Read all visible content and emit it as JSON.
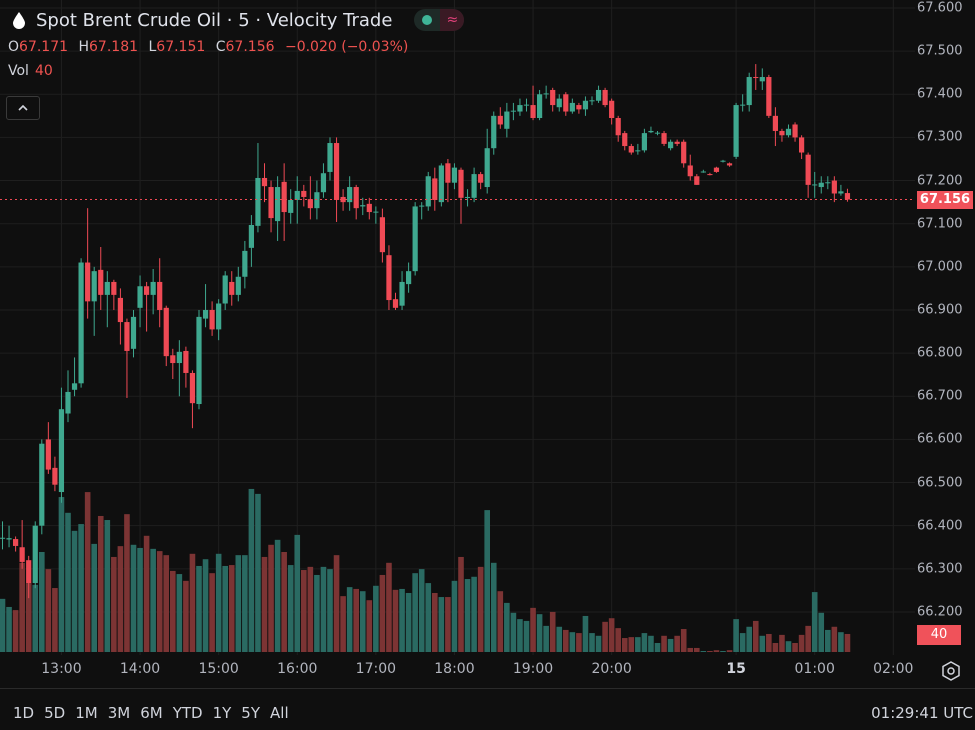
{
  "header": {
    "title": "Spot Brent Crude Oil · 5 · Velocity Trade",
    "symbol_icon": "droplet-icon",
    "status_dot_color": "#3fb598",
    "indicator_icon": "wave-icon",
    "indicator_glyph": "≈",
    "ohlc": {
      "o_label": "O",
      "o": "67.171",
      "h_label": "H",
      "h": "67.181",
      "l_label": "L",
      "l": "67.151",
      "c_label": "C",
      "c": "67.156",
      "change": "−0.020 (−0.03%)"
    },
    "volume_label": "Vol",
    "volume_value": "40",
    "collapse_glyph": "^"
  },
  "price_axis": {
    "ticks": [
      "67.600",
      "67.500",
      "67.400",
      "67.300",
      "67.200",
      "67.100",
      "67.000",
      "66.900",
      "66.800",
      "66.700",
      "66.600",
      "66.500",
      "66.400",
      "66.300",
      "66.200"
    ],
    "current_price": "67.156",
    "current_volume": "40"
  },
  "time_axis": [
    {
      "label": "13:00",
      "candle_index": 9
    },
    {
      "label": "14:00",
      "candle_index": 21
    },
    {
      "label": "15:00",
      "candle_index": 33
    },
    {
      "label": "16:00",
      "candle_index": 45
    },
    {
      "label": "17:00",
      "candle_index": 57
    },
    {
      "label": "18:00",
      "candle_index": 69
    },
    {
      "label": "19:00",
      "candle_index": 81
    },
    {
      "label": "20:00",
      "candle_index": 93
    },
    {
      "label": "15",
      "candle_index": 112,
      "bold": true
    },
    {
      "label": "01:00",
      "candle_index": 124
    },
    {
      "label": "02:00",
      "candle_index": 136
    }
  ],
  "toolbar": {
    "ranges": [
      "1D",
      "5D",
      "1M",
      "3M",
      "6M",
      "YTD",
      "1Y",
      "5Y",
      "All"
    ],
    "clock": "01:29:41 UTC",
    "settings_icon": "settings-icon"
  },
  "colors": {
    "up": "#3fa88f",
    "down": "#ef4a55",
    "vol_up": "#2a6a62",
    "vol_down": "#7c3434",
    "background": "#0f0f0f",
    "grid": "#1f1f1f",
    "price_line": "#ef4a55"
  },
  "chart_data": {
    "type": "candlestick",
    "interval": "5",
    "ylim": [
      66.2,
      67.6
    ],
    "grid": true,
    "ohlc": [
      [
        66.37,
        66.41,
        66.345,
        66.372
      ],
      [
        66.368,
        66.4,
        66.35,
        66.371
      ],
      [
        66.369,
        66.375,
        66.34,
        66.353
      ],
      [
        66.35,
        66.413,
        66.3,
        66.316
      ],
      [
        66.32,
        66.33,
        66.232,
        66.267
      ],
      [
        66.267,
        66.41,
        66.255,
        66.4
      ],
      [
        66.4,
        66.6,
        66.38,
        66.59
      ],
      [
        66.6,
        66.64,
        66.52,
        66.53
      ],
      [
        66.534,
        66.56,
        66.48,
        66.495
      ],
      [
        66.478,
        66.72,
        66.453,
        66.67
      ],
      [
        66.66,
        66.76,
        66.64,
        66.71
      ],
      [
        66.715,
        66.79,
        66.7,
        66.73
      ],
      [
        66.73,
        67.02,
        66.72,
        67.01
      ],
      [
        67.01,
        67.136,
        66.88,
        66.92
      ],
      [
        66.92,
        67.0,
        66.84,
        66.99
      ],
      [
        66.993,
        67.046,
        66.9,
        66.935
      ],
      [
        66.935,
        66.99,
        66.86,
        66.965
      ],
      [
        66.965,
        66.97,
        66.9,
        66.935
      ],
      [
        66.928,
        66.95,
        66.82,
        66.872
      ],
      [
        66.872,
        66.88,
        66.696,
        66.805
      ],
      [
        66.81,
        66.9,
        66.79,
        66.884
      ],
      [
        66.905,
        66.98,
        66.86,
        66.955
      ],
      [
        66.955,
        66.965,
        66.85,
        66.935
      ],
      [
        66.935,
        66.995,
        66.89,
        66.965
      ],
      [
        66.965,
        67.02,
        66.86,
        66.9
      ],
      [
        66.905,
        66.91,
        66.77,
        66.793
      ],
      [
        66.795,
        66.81,
        66.74,
        66.777
      ],
      [
        66.777,
        66.83,
        66.7,
        66.803
      ],
      [
        66.805,
        66.815,
        66.72,
        66.754
      ],
      [
        66.754,
        66.76,
        66.626,
        66.684
      ],
      [
        66.682,
        66.9,
        66.67,
        66.884
      ],
      [
        66.88,
        66.96,
        66.86,
        66.9
      ],
      [
        66.9,
        66.92,
        66.84,
        66.855
      ],
      [
        66.855,
        66.925,
        66.83,
        66.915
      ],
      [
        66.915,
        66.99,
        66.9,
        66.98
      ],
      [
        66.965,
        66.99,
        66.91,
        66.935
      ],
      [
        66.935,
        67.0,
        66.92,
        66.977
      ],
      [
        66.977,
        67.06,
        66.95,
        67.037
      ],
      [
        67.044,
        67.12,
        67.0,
        67.097
      ],
      [
        67.095,
        67.287,
        67.08,
        67.206
      ],
      [
        67.206,
        67.24,
        67.15,
        67.187
      ],
      [
        67.185,
        67.2,
        67.08,
        67.113
      ],
      [
        67.106,
        67.21,
        67.06,
        67.185
      ],
      [
        67.197,
        67.24,
        67.06,
        67.127
      ],
      [
        67.125,
        67.18,
        67.1,
        67.155
      ],
      [
        67.155,
        67.21,
        67.1,
        67.176
      ],
      [
        67.176,
        67.19,
        67.14,
        67.162
      ],
      [
        67.157,
        67.21,
        67.11,
        67.136
      ],
      [
        67.136,
        67.2,
        67.11,
        67.173
      ],
      [
        67.173,
        67.24,
        67.16,
        67.217
      ],
      [
        67.22,
        67.3,
        67.2,
        67.287
      ],
      [
        67.287,
        67.3,
        67.104,
        67.155
      ],
      [
        67.162,
        67.18,
        67.13,
        67.15
      ],
      [
        67.15,
        67.21,
        67.13,
        67.185
      ],
      [
        67.185,
        67.19,
        67.11,
        67.136
      ],
      [
        67.14,
        67.16,
        67.12,
        67.143
      ],
      [
        67.146,
        67.16,
        67.11,
        67.127
      ],
      [
        67.127,
        67.14,
        67.1,
        67.128
      ],
      [
        67.115,
        67.135,
        67.01,
        67.034
      ],
      [
        67.027,
        67.05,
        66.9,
        66.923
      ],
      [
        66.925,
        66.94,
        66.9,
        66.905
      ],
      [
        66.91,
        66.99,
        66.9,
        66.965
      ],
      [
        66.96,
        67.01,
        66.94,
        66.99
      ],
      [
        66.99,
        67.15,
        66.98,
        67.14
      ],
      [
        67.14,
        67.15,
        67.11,
        67.142
      ],
      [
        67.14,
        67.22,
        67.13,
        67.21
      ],
      [
        67.205,
        67.23,
        67.13,
        67.155
      ],
      [
        67.15,
        67.24,
        67.14,
        67.235
      ],
      [
        67.24,
        67.25,
        67.15,
        67.195
      ],
      [
        67.195,
        67.24,
        67.18,
        67.23
      ],
      [
        67.225,
        67.23,
        67.1,
        67.16
      ],
      [
        67.16,
        67.18,
        67.14,
        67.162
      ],
      [
        67.16,
        67.23,
        67.15,
        67.215
      ],
      [
        67.215,
        67.22,
        67.18,
        67.195
      ],
      [
        67.185,
        67.32,
        67.17,
        67.275
      ],
      [
        67.275,
        67.36,
        67.26,
        67.35
      ],
      [
        67.35,
        67.37,
        67.32,
        67.33
      ],
      [
        67.32,
        67.38,
        67.3,
        67.36
      ],
      [
        67.36,
        67.38,
        67.34,
        67.362
      ],
      [
        67.36,
        67.39,
        67.35,
        67.375
      ],
      [
        67.375,
        67.39,
        67.36,
        67.376
      ],
      [
        67.375,
        67.42,
        67.34,
        67.345
      ],
      [
        67.345,
        67.41,
        67.34,
        67.4
      ],
      [
        67.4,
        67.42,
        67.39,
        67.402
      ],
      [
        67.41,
        67.415,
        67.36,
        67.375
      ],
      [
        67.37,
        67.4,
        67.36,
        67.39
      ],
      [
        67.4,
        67.405,
        67.35,
        67.36
      ],
      [
        67.36,
        67.39,
        67.355,
        67.38
      ],
      [
        67.375,
        67.38,
        67.355,
        67.365
      ],
      [
        67.365,
        67.395,
        67.35,
        67.385
      ],
      [
        67.385,
        67.395,
        67.375,
        67.386
      ],
      [
        67.385,
        67.42,
        67.38,
        67.41
      ],
      [
        67.41,
        67.415,
        67.37,
        67.375
      ],
      [
        67.385,
        67.39,
        67.33,
        67.345
      ],
      [
        67.345,
        67.35,
        67.29,
        67.305
      ],
      [
        67.31,
        67.315,
        67.27,
        67.28
      ],
      [
        67.28,
        67.285,
        67.26,
        67.265
      ],
      [
        67.268,
        67.285,
        67.26,
        67.27
      ],
      [
        67.27,
        67.32,
        67.265,
        67.31
      ],
      [
        67.312,
        67.325,
        67.31,
        67.315
      ],
      [
        67.31,
        67.315,
        67.305,
        67.311
      ],
      [
        67.31,
        67.315,
        67.28,
        67.285
      ],
      [
        67.275,
        67.295,
        67.27,
        67.29
      ],
      [
        67.29,
        67.295,
        67.28,
        67.285
      ],
      [
        67.29,
        67.295,
        67.23,
        67.24
      ],
      [
        67.235,
        67.26,
        67.2,
        67.21
      ],
      [
        67.21,
        67.215,
        67.19,
        67.19
      ],
      [
        67.22,
        67.225,
        67.218,
        67.221
      ],
      [
        67.215,
        67.218,
        67.212,
        67.214
      ],
      [
        67.23,
        67.232,
        67.218,
        67.22
      ],
      [
        67.245,
        67.248,
        67.242,
        67.246
      ],
      [
        67.24,
        67.242,
        67.232,
        67.235
      ],
      [
        67.255,
        67.38,
        67.25,
        67.375
      ],
      [
        67.375,
        67.4,
        67.36,
        67.376
      ],
      [
        67.375,
        67.45,
        67.36,
        67.44
      ],
      [
        67.44,
        67.47,
        67.41,
        67.438
      ],
      [
        67.43,
        67.46,
        67.41,
        67.44
      ],
      [
        67.44,
        67.445,
        67.345,
        67.35
      ],
      [
        67.35,
        67.37,
        67.28,
        67.315
      ],
      [
        67.315,
        67.32,
        67.29,
        67.305
      ],
      [
        67.305,
        67.33,
        67.3,
        67.32
      ],
      [
        67.33,
        67.335,
        67.29,
        67.3
      ],
      [
        67.3,
        67.305,
        67.25,
        67.265
      ],
      [
        67.26,
        67.265,
        67.16,
        67.19
      ],
      [
        67.19,
        67.22,
        67.16,
        67.191
      ],
      [
        67.185,
        67.21,
        67.17,
        67.195
      ],
      [
        67.195,
        67.21,
        67.18,
        67.196
      ],
      [
        67.2,
        67.21,
        67.15,
        67.17
      ],
      [
        67.17,
        67.19,
        67.165,
        67.175
      ],
      [
        67.171,
        67.181,
        67.151,
        67.156
      ]
    ],
    "volume": [
      118,
      100,
      93,
      198,
      153,
      149,
      222,
      184,
      142,
      344,
      309,
      269,
      284,
      355,
      240,
      302,
      293,
      211,
      235,
      306,
      238,
      231,
      258,
      229,
      224,
      215,
      180,
      173,
      158,
      218,
      191,
      206,
      175,
      218,
      191,
      193,
      215,
      215,
      362,
      351,
      211,
      238,
      249,
      222,
      193,
      260,
      182,
      189,
      171,
      189,
      184,
      215,
      124,
      144,
      140,
      135,
      115,
      147,
      171,
      198,
      138,
      140,
      131,
      175,
      184,
      153,
      131,
      122,
      122,
      158,
      211,
      162,
      167,
      189,
      315,
      198,
      135,
      109,
      87,
      73,
      69,
      98,
      84,
      58,
      89,
      56,
      49,
      44,
      42,
      80,
      42,
      36,
      67,
      75,
      53,
      31,
      33,
      33,
      42,
      36,
      20,
      36,
      29,
      36,
      51,
      9,
      9,
      2,
      2,
      4,
      2,
      4,
      73,
      42,
      56,
      69,
      36,
      40,
      20,
      38,
      24,
      20,
      38,
      58,
      133,
      87,
      49,
      56,
      44,
      40
    ]
  }
}
